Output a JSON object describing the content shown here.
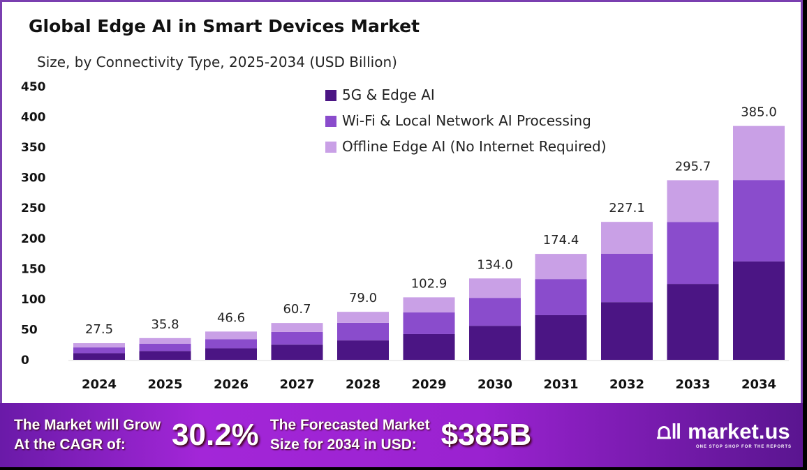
{
  "chart_data": {
    "type": "bar",
    "stacked": true,
    "title": "Global Edge AI in Smart Devices Market",
    "subtitle": "Size, by Connectivity Type, 2025-2034 (USD Billion)",
    "categories": [
      "2024",
      "2025",
      "2026",
      "2027",
      "2028",
      "2029",
      "2030",
      "2031",
      "2032",
      "2033",
      "2034"
    ],
    "series": [
      {
        "name": "5G & Edge AI",
        "color": "#4b1584",
        "values": [
          11,
          14.5,
          19,
          25,
          32,
          42.5,
          56,
          73.5,
          95,
          125,
          162
        ]
      },
      {
        "name": "Wi-Fi & Local Network AI Processing",
        "color": "#8a4ccc",
        "values": [
          9.5,
          12,
          15,
          21,
          29,
          35.5,
          46,
          59.5,
          79.5,
          102,
          134
        ]
      },
      {
        "name": "Offline Edge AI (No Internet Required)",
        "color": "#c9a0e6",
        "values": [
          7,
          9.3,
          12.6,
          14.7,
          18,
          24.9,
          32,
          41.4,
          52.6,
          68.7,
          89
        ]
      }
    ],
    "totals": [
      "27.5",
      "35.8",
      "46.6",
      "60.7",
      "79.0",
      "102.9",
      "134.0",
      "174.4",
      "227.1",
      "295.7",
      "385.0"
    ],
    "yticks": [
      0,
      50,
      100,
      150,
      200,
      250,
      300,
      350,
      400,
      450
    ],
    "ylim": [
      0,
      450
    ],
    "grid": false,
    "legend": "top-center"
  },
  "banner": {
    "cagr_label_1": "The Market will Grow",
    "cagr_label_2": "At the CAGR of:",
    "cagr_value": "30.2%",
    "size_label_1": "The Forecasted Market",
    "size_label_2": "Size for 2034 in USD:",
    "size_value": "$385B",
    "logo": "market.us",
    "logo_tagline": "ONE STOP SHOP FOR THE REPORTS"
  }
}
